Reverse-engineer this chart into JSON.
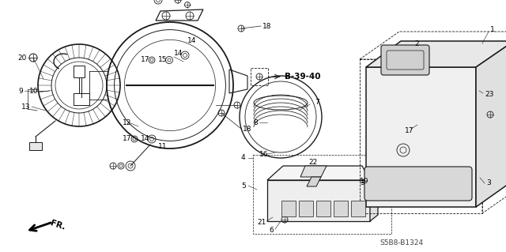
{
  "bg_color": "#ffffff",
  "diagram_code": "S5B8-B1324",
  "fr_label": "FR.",
  "bold_label": "B-39-40",
  "line_color": "#1a1a1a",
  "label_fontsize": 6.5,
  "diagram_fontsize": 6.5,
  "fig_w": 6.4,
  "fig_h": 3.19,
  "dpi": 100
}
